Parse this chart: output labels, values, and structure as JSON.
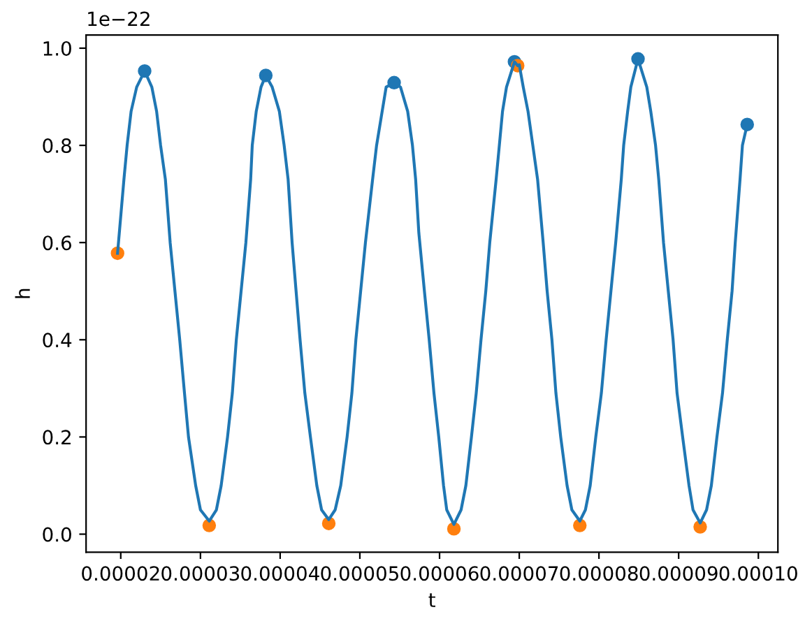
{
  "chart_data": {
    "type": "line",
    "xlabel": "t",
    "ylabel": "h",
    "annotations": [
      "1e−22"
    ],
    "xlim": [
      1.565e-05,
      0.00010245
    ],
    "ylim": [
      -0.037,
      1.027
    ],
    "xticks": [
      {
        "value": 2e-05,
        "label": "0.00002"
      },
      {
        "value": 3e-05,
        "label": "0.00003"
      },
      {
        "value": 4e-05,
        "label": "0.00004"
      },
      {
        "value": 5e-05,
        "label": "0.00005"
      },
      {
        "value": 6e-05,
        "label": "0.00006"
      },
      {
        "value": 7e-05,
        "label": "0.00007"
      },
      {
        "value": 8e-05,
        "label": "0.00008"
      },
      {
        "value": 9e-05,
        "label": "0.00009"
      },
      {
        "value": 0.0001,
        "label": "0.00010"
      }
    ],
    "yticks": [
      {
        "value": 0,
        "label": "0.0"
      },
      0.2,
      0.4,
      0.6,
      0.8,
      {
        "value": 1,
        "label": "1.0"
      }
    ],
    "series": [
      {
        "color": "#1f77b4",
        "line_style": "solid",
        "x": [
          1.96e-05,
          2.04e-05,
          2.08e-05,
          2.13e-05,
          2.2e-05,
          2.3e-05,
          2.39e-05,
          2.45e-05,
          2.5e-05,
          2.56e-05,
          2.62e-05,
          2.68e-05,
          2.74e-05,
          2.8e-05,
          2.85e-05,
          2.94e-05,
          3e-05,
          3.11e-05,
          3.2e-05,
          3.26e-05,
          3.34e-05,
          3.4e-05,
          3.45e-05,
          3.51e-05,
          3.57e-05,
          3.63e-05,
          3.65e-05,
          3.7e-05,
          3.76e-05,
          3.82e-05,
          3.9e-05,
          3.99e-05,
          4.05e-05,
          4.1e-05,
          4.15e-05,
          4.2e-05,
          4.25e-05,
          4.31e-05,
          4.38e-05,
          4.46e-05,
          4.52e-05,
          4.61e-05,
          4.69e-05,
          4.76e-05,
          4.84e-05,
          4.9e-05,
          4.95e-05,
          5.01e-05,
          5.07e-05,
          5.16e-05,
          5.21e-05,
          5.28e-05,
          5.33e-05,
          5.43e-05,
          5.51e-05,
          5.6e-05,
          5.66e-05,
          5.7e-05,
          5.74e-05,
          5.81e-05,
          5.87e-05,
          5.93e-05,
          5.99e-05,
          6.05e-05,
          6.09e-05,
          6.18e-05,
          6.27e-05,
          6.33e-05,
          6.4e-05,
          6.46e-05,
          6.52e-05,
          6.58e-05,
          6.63e-05,
          6.71e-05,
          6.75e-05,
          6.79e-05,
          6.84e-05,
          6.94e-05,
          6.98e-05,
          7e-05,
          7.05e-05,
          7.11e-05,
          7.17e-05,
          7.23e-05,
          7.3e-05,
          7.35e-05,
          7.41e-05,
          7.46e-05,
          7.52e-05,
          7.6e-05,
          7.66e-05,
          7.76e-05,
          7.83e-05,
          7.89e-05,
          7.96e-05,
          8.03e-05,
          8.09e-05,
          8.15e-05,
          8.21e-05,
          8.28e-05,
          8.31e-05,
          8.36e-05,
          8.4e-05,
          8.49e-05,
          8.6e-05,
          8.65e-05,
          8.71e-05,
          8.75e-05,
          8.81e-05,
          8.87e-05,
          8.93e-05,
          8.98e-05,
          9.05e-05,
          9.13e-05,
          9.18e-05,
          9.27e-05,
          9.35e-05,
          9.41e-05,
          9.48e-05,
          9.55e-05,
          9.61e-05,
          9.67e-05,
          9.71e-05,
          9.77e-05,
          9.8e-05,
          9.86e-05
        ],
        "values": [
          0.578,
          0.73,
          0.8,
          0.87,
          0.92,
          0.953,
          0.92,
          0.87,
          0.8,
          0.73,
          0.6,
          0.5,
          0.4,
          0.29,
          0.2,
          0.1,
          0.05,
          0.027,
          0.05,
          0.1,
          0.2,
          0.29,
          0.4,
          0.5,
          0.6,
          0.73,
          0.8,
          0.87,
          0.92,
          0.944,
          0.92,
          0.87,
          0.8,
          0.73,
          0.6,
          0.5,
          0.4,
          0.29,
          0.2,
          0.1,
          0.05,
          0.03,
          0.05,
          0.1,
          0.2,
          0.29,
          0.4,
          0.5,
          0.6,
          0.73,
          0.8,
          0.87,
          0.92,
          0.929,
          0.92,
          0.87,
          0.8,
          0.73,
          0.62,
          0.5,
          0.4,
          0.29,
          0.2,
          0.1,
          0.05,
          0.02,
          0.05,
          0.1,
          0.2,
          0.29,
          0.4,
          0.5,
          0.6,
          0.73,
          0.8,
          0.87,
          0.92,
          0.972,
          0.964,
          0.966,
          0.92,
          0.87,
          0.8,
          0.73,
          0.6,
          0.5,
          0.4,
          0.29,
          0.2,
          0.1,
          0.05,
          0.027,
          0.05,
          0.1,
          0.2,
          0.29,
          0.4,
          0.5,
          0.6,
          0.73,
          0.8,
          0.87,
          0.92,
          0.978,
          0.92,
          0.87,
          0.8,
          0.73,
          0.6,
          0.5,
          0.4,
          0.29,
          0.2,
          0.1,
          0.05,
          0.023,
          0.05,
          0.1,
          0.2,
          0.29,
          0.4,
          0.5,
          0.6,
          0.73,
          0.8,
          0.843
        ]
      },
      {
        "type": "scatter",
        "color": "#1f77b4",
        "marker": "circle",
        "x": [
          2.3e-05,
          3.82e-05,
          5.43e-05,
          6.94e-05,
          8.49e-05,
          9.86e-05
        ],
        "values": [
          0.953,
          0.944,
          0.929,
          0.972,
          0.978,
          0.843
        ]
      },
      {
        "type": "scatter",
        "color": "#ff7f0e",
        "marker": "circle",
        "x": [
          1.96e-05,
          3.11e-05,
          4.61e-05,
          6.18e-05,
          6.98e-05,
          7.76e-05,
          9.27e-05
        ],
        "values": [
          0.578,
          0.018,
          0.022,
          0.011,
          0.964,
          0.018,
          0.015
        ]
      }
    ]
  }
}
